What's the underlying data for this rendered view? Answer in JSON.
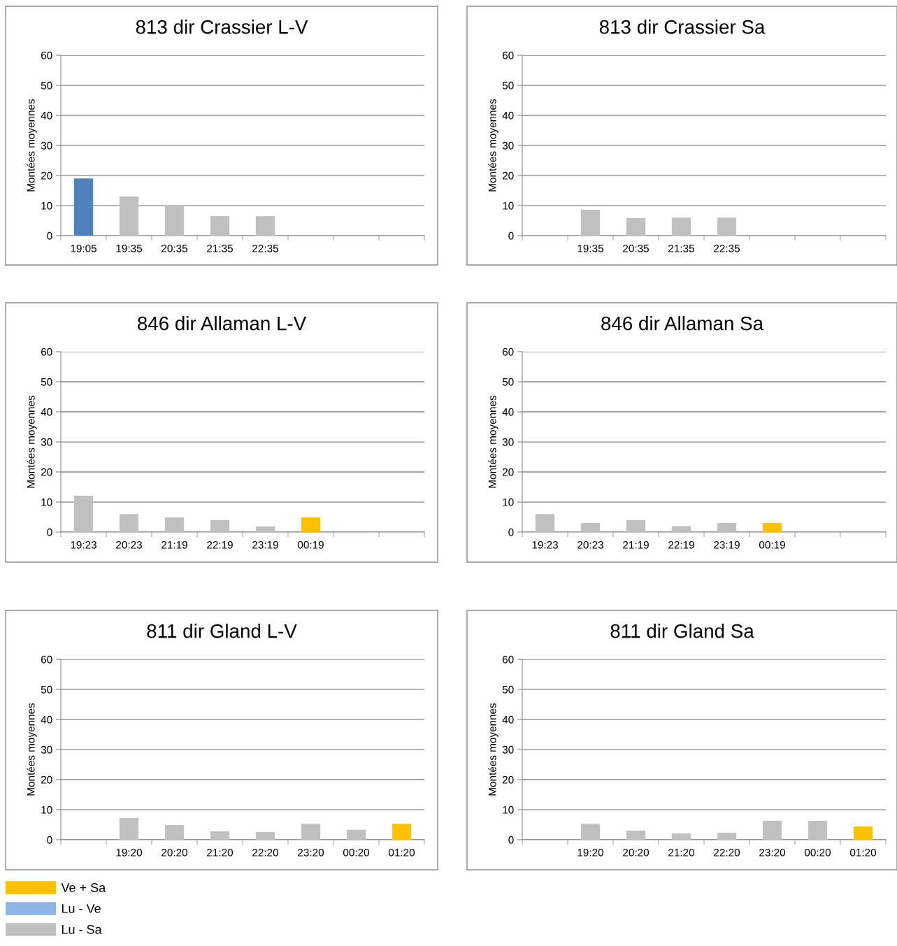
{
  "chart_data": [
    {
      "type": "bar",
      "title": "813 dir Crassier L-V",
      "ylabel": "Montées moyennes",
      "categories": [
        "19:05",
        "19:35",
        "20:35",
        "21:35",
        "22:35",
        null,
        null,
        null
      ],
      "ylim": [
        0,
        60
      ],
      "yticks": [
        0,
        10,
        20,
        30,
        40,
        50,
        60
      ],
      "grid": "y",
      "series": [
        {
          "color": "#4f81bd",
          "values": [
            19,
            null,
            null,
            null,
            null,
            null,
            null,
            null
          ]
        },
        {
          "color": "#c0c0c0",
          "values": [
            null,
            13,
            10,
            6.5,
            6.5,
            null,
            null,
            null
          ]
        }
      ]
    },
    {
      "type": "bar",
      "title": "813 dir Crassier Sa",
      "ylabel": "Montées moyennes",
      "categories": [
        null,
        "19:35",
        "20:35",
        "21:35",
        "22:35",
        null,
        null,
        null
      ],
      "ylim": [
        0,
        60
      ],
      "yticks": [
        0,
        10,
        20,
        30,
        40,
        50,
        60
      ],
      "grid": "y",
      "series": [
        {
          "color": "#c0c0c0",
          "values": [
            null,
            8.6,
            5.8,
            6,
            6,
            null,
            null,
            null
          ]
        }
      ]
    },
    {
      "type": "bar",
      "title": "846 dir Allaman L-V",
      "ylabel": "Montées moyennes",
      "categories": [
        "19:23",
        "20:23",
        "21:19",
        "22:19",
        "23:19",
        "00:19",
        null,
        null
      ],
      "ylim": [
        0,
        60
      ],
      "yticks": [
        0,
        10,
        20,
        30,
        40,
        50,
        60
      ],
      "grid": "y",
      "series": [
        {
          "color": "#ffc000",
          "values": [
            null,
            null,
            null,
            null,
            null,
            4.9,
            null,
            null
          ]
        },
        {
          "color": "#c0c0c0",
          "values": [
            12.1,
            6,
            4.9,
            4,
            1.9,
            null,
            null,
            null
          ]
        }
      ]
    },
    {
      "type": "bar",
      "title": "846 dir Allaman Sa",
      "ylabel": "Montées moyennes",
      "categories": [
        "19:23",
        "20:23",
        "21:19",
        "22:19",
        "23:19",
        "00:19",
        null,
        null
      ],
      "ylim": [
        0,
        60
      ],
      "yticks": [
        0,
        10,
        20,
        30,
        40,
        50,
        60
      ],
      "grid": "y",
      "series": [
        {
          "color": "#ffc000",
          "values": [
            null,
            null,
            null,
            null,
            null,
            3,
            null,
            null
          ]
        },
        {
          "color": "#c0c0c0",
          "values": [
            6,
            3,
            4,
            2,
            3,
            null,
            null,
            null
          ]
        }
      ]
    },
    {
      "type": "bar",
      "title": "811 dir Gland L-V",
      "ylabel": "Montées moyennes",
      "categories": [
        null,
        "19:20",
        "20:20",
        "21:20",
        "22:20",
        "23:20",
        "00:20",
        "01:20"
      ],
      "ylim": [
        0,
        60
      ],
      "yticks": [
        0,
        10,
        20,
        30,
        40,
        50,
        60
      ],
      "grid": "y",
      "legend": "bottom",
      "series": [
        {
          "name": "Ve + Sa",
          "color": "#ffc000",
          "values": [
            null,
            null,
            null,
            null,
            null,
            null,
            null,
            5.3
          ]
        },
        {
          "name": "Lu - Ve",
          "color": "#8db4e2",
          "values": [
            null,
            null,
            null,
            null,
            null,
            null,
            null,
            null
          ]
        },
        {
          "name": "Lu - Sa",
          "color": "#c0c0c0",
          "values": [
            null,
            7.2,
            4.9,
            2.8,
            2.6,
            5.3,
            3.3,
            null
          ]
        }
      ]
    },
    {
      "type": "bar",
      "title": "811 dir Gland Sa",
      "ylabel": "Montées moyennes",
      "categories": [
        null,
        "19:20",
        "20:20",
        "21:20",
        "22:20",
        "23:20",
        "00:20",
        "01:20"
      ],
      "ylim": [
        0,
        60
      ],
      "yticks": [
        0,
        10,
        20,
        30,
        40,
        50,
        60
      ],
      "grid": "y",
      "series": [
        {
          "color": "#ffc000",
          "values": [
            null,
            null,
            null,
            null,
            null,
            null,
            null,
            4.4
          ]
        },
        {
          "color": "#c0c0c0",
          "values": [
            null,
            5.3,
            3,
            2.1,
            2.3,
            6.3,
            6.3,
            null
          ]
        }
      ]
    }
  ]
}
